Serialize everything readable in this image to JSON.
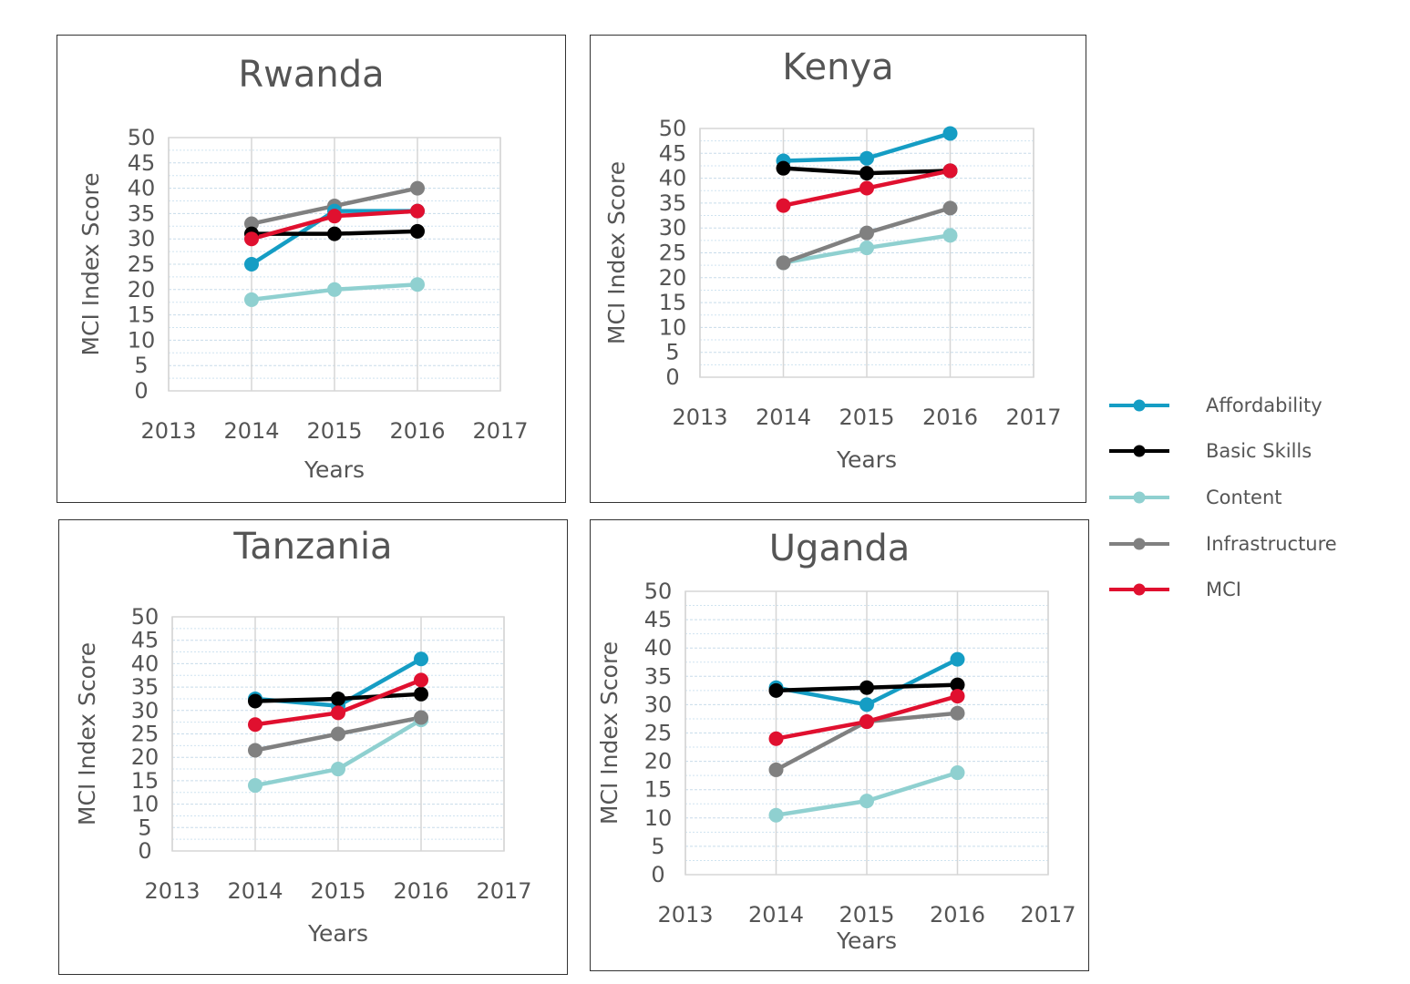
{
  "colors": {
    "Affordability": "#159dc4",
    "Basic Skills": "#000000",
    "Content": "#8fd0d0",
    "Infrastructure": "#808080",
    "MCI": "#e0102f"
  },
  "legend": [
    "Affordability",
    "Basic Skills",
    "Content",
    "Infrastructure",
    "MCI"
  ],
  "chart_data": [
    {
      "type": "line",
      "title": "Rwanda",
      "xlabel": "Years",
      "ylabel": "MCI Index Score",
      "xlim": [
        2013,
        2017
      ],
      "ylim": [
        0,
        50
      ],
      "x_ticks": [
        "2013",
        "2014",
        "2015",
        "2016",
        "2017"
      ],
      "y_ticks": [
        "0",
        "5",
        "10",
        "15",
        "20",
        "25",
        "30",
        "35",
        "40",
        "45",
        "50"
      ],
      "grid": true,
      "x": [
        2014,
        2015,
        2016
      ],
      "series": [
        {
          "name": "Content",
          "values": [
            18,
            20,
            21
          ]
        },
        {
          "name": "Infrastructure",
          "values": [
            33,
            36.5,
            40
          ]
        },
        {
          "name": "Affordability",
          "values": [
            25,
            35.5,
            35.5
          ]
        },
        {
          "name": "Basic Skills",
          "values": [
            31,
            31,
            31.5
          ]
        },
        {
          "name": "MCI",
          "values": [
            30,
            34.5,
            35.5
          ]
        }
      ]
    },
    {
      "type": "line",
      "title": "Kenya",
      "xlabel": "Years",
      "ylabel": "MCI Index Score",
      "xlim": [
        2013,
        2017
      ],
      "ylim": [
        0,
        50
      ],
      "x_ticks": [
        "2013",
        "2014",
        "2015",
        "2016",
        "2017"
      ],
      "y_ticks": [
        "0",
        "5",
        "10",
        "15",
        "20",
        "25",
        "30",
        "35",
        "40",
        "45",
        "50"
      ],
      "grid": true,
      "x": [
        2014,
        2015,
        2016
      ],
      "series": [
        {
          "name": "Content",
          "values": [
            23,
            26,
            28.5
          ]
        },
        {
          "name": "Infrastructure",
          "values": [
            23,
            29,
            34
          ]
        },
        {
          "name": "Affordability",
          "values": [
            43.5,
            44,
            49
          ]
        },
        {
          "name": "Basic Skills",
          "values": [
            42,
            41,
            41.5
          ]
        },
        {
          "name": "MCI",
          "values": [
            34.5,
            38,
            41.5
          ]
        }
      ]
    },
    {
      "type": "line",
      "title": "Tanzania",
      "xlabel": "Years",
      "ylabel": "MCI Index Score",
      "xlim": [
        2013,
        2017
      ],
      "ylim": [
        0,
        50
      ],
      "x_ticks": [
        "2013",
        "2014",
        "2015",
        "2016",
        "2017"
      ],
      "y_ticks": [
        "0",
        "5",
        "10",
        "15",
        "20",
        "25",
        "30",
        "35",
        "40",
        "45",
        "50"
      ],
      "grid": true,
      "x": [
        2014,
        2015,
        2016
      ],
      "series": [
        {
          "name": "Content",
          "values": [
            14,
            17.5,
            28
          ]
        },
        {
          "name": "Infrastructure",
          "values": [
            21.5,
            25,
            28.5
          ]
        },
        {
          "name": "Affordability",
          "values": [
            32.5,
            31,
            41
          ]
        },
        {
          "name": "Basic Skills",
          "values": [
            32,
            32.5,
            33.5
          ]
        },
        {
          "name": "MCI",
          "values": [
            27,
            29.5,
            36.5
          ]
        }
      ]
    },
    {
      "type": "line",
      "title": "Uganda",
      "xlabel": "Years",
      "ylabel": "MCI Index Score",
      "xlim": [
        2013,
        2017
      ],
      "ylim": [
        0,
        50
      ],
      "x_ticks": [
        "2013",
        "2014",
        "2015",
        "2016",
        "2017"
      ],
      "y_ticks": [
        "0",
        "5",
        "10",
        "15",
        "20",
        "25",
        "30",
        "35",
        "40",
        "45",
        "50"
      ],
      "grid": true,
      "x": [
        2014,
        2015,
        2016
      ],
      "series": [
        {
          "name": "Content",
          "values": [
            10.5,
            13,
            18
          ]
        },
        {
          "name": "Infrastructure",
          "values": [
            18.5,
            27,
            28.5
          ]
        },
        {
          "name": "Affordability",
          "values": [
            33,
            30,
            38
          ]
        },
        {
          "name": "Basic Skills",
          "values": [
            32.5,
            33,
            33.5
          ]
        },
        {
          "name": "MCI",
          "values": [
            24,
            27,
            31.5
          ]
        }
      ]
    }
  ]
}
